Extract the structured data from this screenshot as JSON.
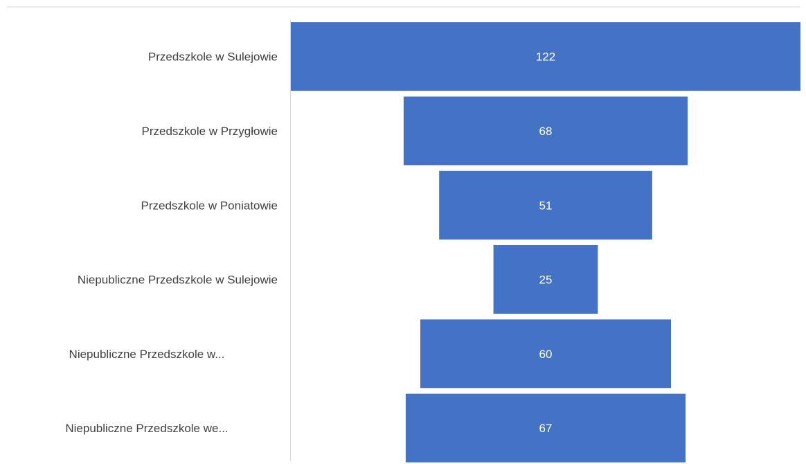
{
  "chart_data": {
    "type": "bar",
    "subtype": "funnel",
    "categories": [
      "Przedszkole w Sulejowie",
      "Przedszkole w Przygłowie",
      "Przedszkole w Poniatowie",
      "Niepubliczne Przedszkole w Sulejowie",
      "Niepubliczne Przedszkole w...",
      "Niepubliczne Przedszkole we..."
    ],
    "values": [
      122,
      68,
      51,
      25,
      60,
      67
    ],
    "data_labels": [
      "122",
      "68",
      "51",
      "25",
      "60",
      "67"
    ],
    "title": "",
    "xlabel": "",
    "ylabel": "",
    "grid": false,
    "legend": "none",
    "colors": {
      "bar": "#4472C4",
      "value_label": "#FFFFFF",
      "category_label": "#404040",
      "frame": "#D9D9D9",
      "axis_line": "#D9D9D9"
    }
  }
}
